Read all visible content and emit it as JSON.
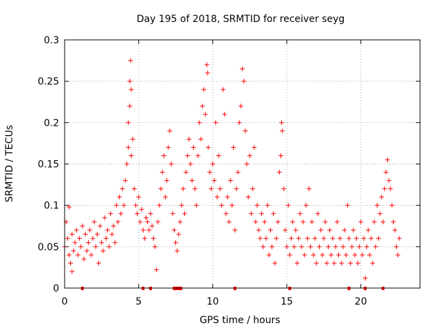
{
  "chart_data": {
    "type": "scatter",
    "title": "Day 195 of 2018, SRMTID for receiver seyg",
    "xlabel": "GPS time / hours",
    "ylabel": "SRMTID / TECUs",
    "xlim": [
      0,
      24
    ],
    "ylim": [
      0,
      0.3
    ],
    "xticks": [
      0,
      5,
      10,
      15,
      20
    ],
    "xtick_labels": [
      "0",
      "5",
      "10",
      "15",
      "20"
    ],
    "yticks": [
      0,
      0.05,
      0.1,
      0.15,
      0.2,
      0.25,
      0.3
    ],
    "ytick_labels": [
      "0",
      "0.05",
      "0.1",
      "0.15",
      "0.2",
      "0.25",
      "0.3"
    ],
    "grid": true,
    "marker": "+",
    "color": "#ff0000",
    "series": [
      {
        "name": "SRMTID",
        "points": [
          [
            0.0,
            0.05
          ],
          [
            0.1,
            0.08
          ],
          [
            0.2,
            0.06
          ],
          [
            0.3,
            0.04
          ],
          [
            0.3,
            0.098
          ],
          [
            0.4,
            0.03
          ],
          [
            0.5,
            0.02
          ],
          [
            0.5,
            0.065
          ],
          [
            0.6,
            0.045
          ],
          [
            0.7,
            0.055
          ],
          [
            0.8,
            0.07
          ],
          [
            0.9,
            0.04
          ],
          [
            1.0,
            0.06
          ],
          [
            1.1,
            0.05
          ],
          [
            1.2,
            0.075
          ],
          [
            1.3,
            0.035
          ],
          [
            1.4,
            0.065
          ],
          [
            1.5,
            0.045
          ],
          [
            1.6,
            0.055
          ],
          [
            1.7,
            0.07
          ],
          [
            1.8,
            0.04
          ],
          [
            1.9,
            0.06
          ],
          [
            2.0,
            0.08
          ],
          [
            2.1,
            0.05
          ],
          [
            2.2,
            0.065
          ],
          [
            2.3,
            0.03
          ],
          [
            2.4,
            0.075
          ],
          [
            2.5,
            0.055
          ],
          [
            2.6,
            0.045
          ],
          [
            2.7,
            0.085
          ],
          [
            2.8,
            0.06
          ],
          [
            2.9,
            0.07
          ],
          [
            3.0,
            0.05
          ],
          [
            3.1,
            0.09
          ],
          [
            3.2,
            0.065
          ],
          [
            3.3,
            0.075
          ],
          [
            3.4,
            0.055
          ],
          [
            3.5,
            0.1
          ],
          [
            3.6,
            0.08
          ],
          [
            3.7,
            0.11
          ],
          [
            3.8,
            0.09
          ],
          [
            3.9,
            0.12
          ],
          [
            4.0,
            0.1
          ],
          [
            4.1,
            0.13
          ],
          [
            4.2,
            0.15
          ],
          [
            4.3,
            0.17
          ],
          [
            4.3,
            0.2
          ],
          [
            4.4,
            0.22
          ],
          [
            4.4,
            0.25
          ],
          [
            4.45,
            0.275
          ],
          [
            4.5,
            0.24
          ],
          [
            4.5,
            0.16
          ],
          [
            4.6,
            0.18
          ],
          [
            4.7,
            0.12
          ],
          [
            4.8,
            0.1
          ],
          [
            4.9,
            0.09
          ],
          [
            5.0,
            0.11
          ],
          [
            5.1,
            0.08
          ],
          [
            5.2,
            0.095
          ],
          [
            5.3,
            0.07
          ],
          [
            5.4,
            0.06
          ],
          [
            5.5,
            0.085
          ],
          [
            5.6,
            0.08
          ],
          [
            5.7,
            0.07
          ],
          [
            5.8,
            0.09
          ],
          [
            5.9,
            0.075
          ],
          [
            6.0,
            0.06
          ],
          [
            6.1,
            0.05
          ],
          [
            6.2,
            0.022
          ],
          [
            6.3,
            0.08
          ],
          [
            6.4,
            0.1
          ],
          [
            6.5,
            0.12
          ],
          [
            6.6,
            0.14
          ],
          [
            6.7,
            0.16
          ],
          [
            6.8,
            0.11
          ],
          [
            6.9,
            0.13
          ],
          [
            7.0,
            0.17
          ],
          [
            7.1,
            0.19
          ],
          [
            7.2,
            0.15
          ],
          [
            7.3,
            0.09
          ],
          [
            7.4,
            0.07
          ],
          [
            7.5,
            0.055
          ],
          [
            7.6,
            0.045
          ],
          [
            7.7,
            0.065
          ],
          [
            7.8,
            0.08
          ],
          [
            7.9,
            0.1
          ],
          [
            8.0,
            0.12
          ],
          [
            8.1,
            0.09
          ],
          [
            8.2,
            0.14
          ],
          [
            8.3,
            0.16
          ],
          [
            8.4,
            0.18
          ],
          [
            8.5,
            0.15
          ],
          [
            8.6,
            0.13
          ],
          [
            8.7,
            0.17
          ],
          [
            8.8,
            0.12
          ],
          [
            8.9,
            0.1
          ],
          [
            9.0,
            0.16
          ],
          [
            9.1,
            0.2
          ],
          [
            9.2,
            0.18
          ],
          [
            9.3,
            0.22
          ],
          [
            9.4,
            0.24
          ],
          [
            9.5,
            0.21
          ],
          [
            9.6,
            0.27
          ],
          [
            9.65,
            0.26
          ],
          [
            9.7,
            0.17
          ],
          [
            9.8,
            0.14
          ],
          [
            9.9,
            0.12
          ],
          [
            10.0,
            0.15
          ],
          [
            10.1,
            0.13
          ],
          [
            10.2,
            0.2
          ],
          [
            10.3,
            0.11
          ],
          [
            10.4,
            0.16
          ],
          [
            10.5,
            0.12
          ],
          [
            10.6,
            0.1
          ],
          [
            10.7,
            0.24
          ],
          [
            10.8,
            0.21
          ],
          [
            10.9,
            0.09
          ],
          [
            11.0,
            0.11
          ],
          [
            11.1,
            0.08
          ],
          [
            11.2,
            0.13
          ],
          [
            11.3,
            0.1
          ],
          [
            11.4,
            0.17
          ],
          [
            11.5,
            0.07
          ],
          [
            11.6,
            0.12
          ],
          [
            11.7,
            0.14
          ],
          [
            11.8,
            0.2
          ],
          [
            11.9,
            0.22
          ],
          [
            12.0,
            0.265
          ],
          [
            12.1,
            0.25
          ],
          [
            12.2,
            0.19
          ],
          [
            12.3,
            0.15
          ],
          [
            12.4,
            0.11
          ],
          [
            12.5,
            0.16
          ],
          [
            12.6,
            0.09
          ],
          [
            12.7,
            0.12
          ],
          [
            12.8,
            0.17
          ],
          [
            12.9,
            0.08
          ],
          [
            13.0,
            0.1
          ],
          [
            13.1,
            0.07
          ],
          [
            13.2,
            0.06
          ],
          [
            13.3,
            0.09
          ],
          [
            13.4,
            0.05
          ],
          [
            13.5,
            0.08
          ],
          [
            13.6,
            0.06
          ],
          [
            13.7,
            0.1
          ],
          [
            13.8,
            0.04
          ],
          [
            13.9,
            0.07
          ],
          [
            14.0,
            0.05
          ],
          [
            14.1,
            0.09
          ],
          [
            14.2,
            0.03
          ],
          [
            14.3,
            0.06
          ],
          [
            14.4,
            0.08
          ],
          [
            14.5,
            0.14
          ],
          [
            14.6,
            0.16
          ],
          [
            14.65,
            0.2
          ],
          [
            14.7,
            0.19
          ],
          [
            14.8,
            0.12
          ],
          [
            14.9,
            0.07
          ],
          [
            15.0,
            0.05
          ],
          [
            15.1,
            0.1
          ],
          [
            15.2,
            0.04
          ],
          [
            15.3,
            0.06
          ],
          [
            15.4,
            0.08
          ],
          [
            15.5,
            0.05
          ],
          [
            15.6,
            0.07
          ],
          [
            15.7,
            0.03
          ],
          [
            15.8,
            0.06
          ],
          [
            15.9,
            0.09
          ],
          [
            16.0,
            0.05
          ],
          [
            16.1,
            0.08
          ],
          [
            16.2,
            0.04
          ],
          [
            16.3,
            0.1
          ],
          [
            16.4,
            0.06
          ],
          [
            16.5,
            0.12
          ],
          [
            16.6,
            0.05
          ],
          [
            16.7,
            0.08
          ],
          [
            16.8,
            0.04
          ],
          [
            16.9,
            0.06
          ],
          [
            17.0,
            0.03
          ],
          [
            17.1,
            0.09
          ],
          [
            17.2,
            0.05
          ],
          [
            17.3,
            0.07
          ],
          [
            17.4,
            0.04
          ],
          [
            17.5,
            0.06
          ],
          [
            17.6,
            0.08
          ],
          [
            17.7,
            0.03
          ],
          [
            17.8,
            0.05
          ],
          [
            17.9,
            0.07
          ],
          [
            18.0,
            0.04
          ],
          [
            18.1,
            0.06
          ],
          [
            18.2,
            0.03
          ],
          [
            18.3,
            0.05
          ],
          [
            18.4,
            0.08
          ],
          [
            18.5,
            0.04
          ],
          [
            18.6,
            0.06
          ],
          [
            18.7,
            0.03
          ],
          [
            18.8,
            0.05
          ],
          [
            18.9,
            0.07
          ],
          [
            19.0,
            0.04
          ],
          [
            19.1,
            0.1
          ],
          [
            19.2,
            0.06
          ],
          [
            19.3,
            0.03
          ],
          [
            19.4,
            0.05
          ],
          [
            19.5,
            0.07
          ],
          [
            19.6,
            0.04
          ],
          [
            19.7,
            0.06
          ],
          [
            19.8,
            0.03
          ],
          [
            19.9,
            0.05
          ],
          [
            20.0,
            0.08
          ],
          [
            20.1,
            0.04
          ],
          [
            20.2,
            0.06
          ],
          [
            20.3,
            0.012
          ],
          [
            20.4,
            0.05
          ],
          [
            20.5,
            0.07
          ],
          [
            20.6,
            0.04
          ],
          [
            20.7,
            0.06
          ],
          [
            20.8,
            0.03
          ],
          [
            20.9,
            0.08
          ],
          [
            21.0,
            0.05
          ],
          [
            21.1,
            0.1
          ],
          [
            21.2,
            0.06
          ],
          [
            21.3,
            0.09
          ],
          [
            21.4,
            0.11
          ],
          [
            21.5,
            0.08
          ],
          [
            21.6,
            0.12
          ],
          [
            21.7,
            0.14
          ],
          [
            21.8,
            0.155
          ],
          [
            21.9,
            0.13
          ],
          [
            22.0,
            0.12
          ],
          [
            22.1,
            0.1
          ],
          [
            22.2,
            0.08
          ],
          [
            22.3,
            0.07
          ],
          [
            22.4,
            0.05
          ],
          [
            22.5,
            0.04
          ],
          [
            22.6,
            0.06
          ]
        ]
      }
    ],
    "gap_markers_x": [
      1.2,
      5.3,
      5.8,
      7.4,
      7.55,
      7.7,
      7.85,
      11.5,
      15.2,
      19.2,
      20.3,
      21.5
    ]
  }
}
